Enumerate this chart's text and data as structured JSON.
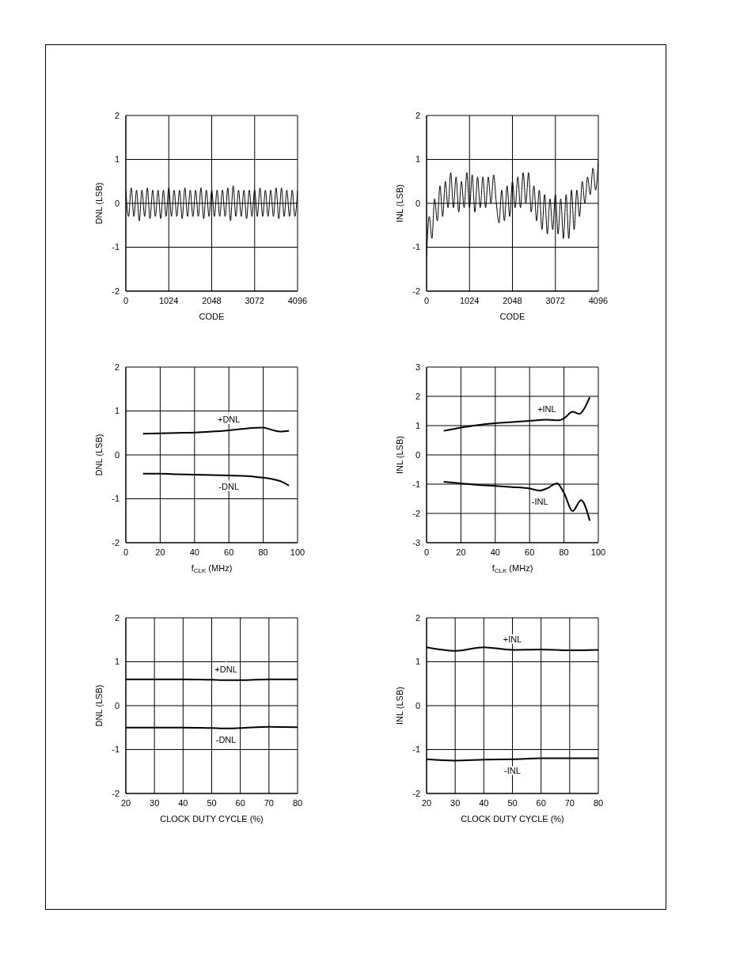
{
  "chart_data": [
    {
      "type": "line",
      "xlabel": "CODE",
      "ylabel": "DNL (LSB)",
      "xlim": [
        0,
        4096
      ],
      "xticks": [
        0,
        1024,
        2048,
        3072,
        4096
      ],
      "ylim": [
        -2,
        2
      ],
      "yticks": [
        -2,
        -1,
        0,
        1,
        2
      ],
      "grid": true,
      "legend": false,
      "marker": "none",
      "line_style": "solid",
      "x": [
        0,
        64,
        128,
        192,
        256,
        320,
        384,
        448,
        512,
        576,
        640,
        704,
        768,
        832,
        896,
        960,
        1024,
        1088,
        1152,
        1216,
        1280,
        1344,
        1408,
        1472,
        1536,
        1600,
        1664,
        1728,
        1792,
        1856,
        1920,
        1984,
        2048,
        2112,
        2176,
        2240,
        2304,
        2368,
        2432,
        2496,
        2560,
        2624,
        2688,
        2752,
        2816,
        2880,
        2944,
        3008,
        3072,
        3136,
        3200,
        3264,
        3328,
        3392,
        3456,
        3520,
        3584,
        3648,
        3712,
        3776,
        3840,
        3904,
        3968,
        4032,
        4096
      ],
      "series": [
        {
          "color": "#000000",
          "values": [
            0.3,
            -0.3,
            0.35,
            -0.3,
            0.3,
            -0.4,
            0.3,
            -0.3,
            0.35,
            -0.35,
            0.3,
            -0.3,
            0.3,
            -0.35,
            0.3,
            -0.3,
            0.35,
            -0.3,
            0.3,
            -0.3,
            0.3,
            -0.35,
            0.35,
            -0.3,
            0.3,
            -0.3,
            0.3,
            -0.3,
            0.35,
            -0.35,
            0.3,
            -0.3,
            0.3,
            -0.3,
            0.3,
            -0.3,
            0.3,
            -0.3,
            0.35,
            -0.4,
            0.4,
            -0.3,
            0.3,
            -0.3,
            0.3,
            -0.35,
            0.3,
            -0.3,
            0.3,
            -0.3,
            0.35,
            -0.3,
            0.3,
            -0.3,
            0.3,
            -0.3,
            0.35,
            -0.35,
            0.35,
            -0.3,
            0.3,
            -0.3,
            0.3,
            -0.3,
            0.3
          ]
        }
      ]
    },
    {
      "type": "line",
      "xlabel": "CODE",
      "ylabel": "INL (LSB)",
      "xlim": [
        0,
        4096
      ],
      "xticks": [
        0,
        1024,
        2048,
        3072,
        4096
      ],
      "ylim": [
        -2,
        2
      ],
      "yticks": [
        -2,
        -1,
        0,
        1,
        2
      ],
      "grid": true,
      "legend": false,
      "marker": "none",
      "line_style": "solid",
      "x": [
        0,
        64,
        128,
        192,
        256,
        320,
        384,
        448,
        512,
        576,
        640,
        704,
        768,
        832,
        896,
        960,
        1024,
        1088,
        1152,
        1216,
        1280,
        1344,
        1408,
        1472,
        1536,
        1600,
        1664,
        1728,
        1792,
        1856,
        1920,
        1984,
        2048,
        2112,
        2176,
        2240,
        2304,
        2368,
        2432,
        2496,
        2560,
        2624,
        2688,
        2752,
        2816,
        2880,
        2944,
        3008,
        3072,
        3136,
        3200,
        3264,
        3328,
        3392,
        3456,
        3520,
        3584,
        3648,
        3712,
        3776,
        3840,
        3904,
        3968,
        4032,
        4096
      ],
      "series": [
        {
          "color": "#000000",
          "values": [
            -1.2,
            -0.3,
            -0.8,
            0.1,
            -0.4,
            0.4,
            -0.3,
            0.5,
            -0.1,
            0.7,
            -0.1,
            0.6,
            -0.2,
            0.5,
            -0.1,
            0.7,
            -0.1,
            0.65,
            -0.2,
            0.6,
            -0.1,
            0.6,
            -0.1,
            0.6,
            0.0,
            0.65,
            0.0,
            -0.45,
            0.3,
            -0.4,
            0.4,
            -0.3,
            0.5,
            -0.1,
            0.6,
            -0.1,
            0.7,
            0.0,
            0.7,
            -0.2,
            0.4,
            -0.4,
            0.3,
            -0.6,
            0.2,
            -0.7,
            0.1,
            -0.6,
            0.2,
            -0.7,
            0.1,
            -0.8,
            0.2,
            -0.8,
            0.3,
            -0.6,
            0.3,
            -0.3,
            0.5,
            0.0,
            0.6,
            0.2,
            0.8,
            0.3,
            1.0
          ]
        }
      ]
    },
    {
      "type": "line",
      "xlabel": "f$_{CLK}$ (MHz)",
      "ylabel": "DNL (LSB)",
      "xlim": [
        0,
        100
      ],
      "xticks": [
        0,
        20,
        40,
        60,
        80,
        100
      ],
      "ylim": [
        -2,
        2
      ],
      "yticks": [
        -2,
        -1,
        0,
        1,
        2
      ],
      "grid": true,
      "legend": false,
      "marker": "none",
      "line_style": "solid",
      "x": [
        10,
        20,
        30,
        40,
        50,
        60,
        70,
        80,
        85,
        90,
        95
      ],
      "series": [
        {
          "name": "+DNL",
          "color": "#000000",
          "values": [
            0.48,
            0.49,
            0.5,
            0.51,
            0.53,
            0.56,
            0.6,
            0.62,
            0.57,
            0.53,
            0.55
          ]
        },
        {
          "name": "-DNL",
          "color": "#000000",
          "values": [
            -0.43,
            -0.43,
            -0.44,
            -0.45,
            -0.46,
            -0.47,
            -0.48,
            -0.52,
            -0.55,
            -0.6,
            -0.7
          ]
        }
      ]
    },
    {
      "type": "line",
      "xlabel": "f$_{CLK}$ (MHz)",
      "ylabel": "INL (LSB)",
      "xlim": [
        0,
        100
      ],
      "xticks": [
        0,
        20,
        40,
        60,
        80,
        100
      ],
      "ylim": [
        -3,
        3
      ],
      "yticks": [
        -3,
        -2,
        -1,
        0,
        1,
        2,
        3
      ],
      "grid": true,
      "legend": false,
      "marker": "none",
      "line_style": "solid",
      "series": [
        {
          "name": "+INL",
          "color": "#000000",
          "x": [
            10,
            20,
            30,
            40,
            50,
            60,
            70,
            77,
            80,
            85,
            89,
            92,
            95
          ],
          "values": [
            0.82,
            0.93,
            1.02,
            1.08,
            1.12,
            1.16,
            1.2,
            1.18,
            1.25,
            1.47,
            1.4,
            1.6,
            1.97
          ]
        },
        {
          "name": "-INL",
          "color": "#000000",
          "x": [
            10,
            20,
            30,
            40,
            50,
            60,
            66,
            70,
            76,
            80,
            85,
            90,
            95
          ],
          "values": [
            -0.92,
            -0.97,
            -1.03,
            -1.06,
            -1.1,
            -1.15,
            -1.22,
            -1.15,
            -0.97,
            -1.3,
            -1.92,
            -1.55,
            -2.25
          ]
        }
      ]
    },
    {
      "type": "line",
      "xlabel": "CLOCK DUTY CYCLE (%)",
      "ylabel": "DNL (LSB)",
      "xlim": [
        20,
        80
      ],
      "xticks": [
        20,
        30,
        40,
        50,
        60,
        70,
        80
      ],
      "ylim": [
        -2,
        2
      ],
      "yticks": [
        -2,
        -1,
        0,
        1,
        2
      ],
      "grid": true,
      "legend": false,
      "marker": "none",
      "line_style": "solid",
      "x": [
        20,
        30,
        40,
        50,
        55,
        60,
        70,
        80
      ],
      "series": [
        {
          "name": "+DNL",
          "color": "#000000",
          "values": [
            0.6,
            0.6,
            0.6,
            0.59,
            0.58,
            0.58,
            0.6,
            0.6
          ]
        },
        {
          "name": "-DNL",
          "color": "#000000",
          "values": [
            -0.5,
            -0.5,
            -0.5,
            -0.51,
            -0.52,
            -0.51,
            -0.48,
            -0.49
          ]
        }
      ]
    },
    {
      "type": "line",
      "xlabel": "CLOCK DUTY CYCLE (%)",
      "ylabel": "INL (LSB)",
      "xlim": [
        20,
        80
      ],
      "xticks": [
        20,
        30,
        40,
        50,
        60,
        70,
        80
      ],
      "ylim": [
        -2,
        2
      ],
      "yticks": [
        -2,
        -1,
        0,
        1,
        2
      ],
      "grid": true,
      "legend": false,
      "marker": "none",
      "line_style": "solid",
      "x": [
        20,
        30,
        40,
        50,
        60,
        70,
        80
      ],
      "series": [
        {
          "name": "+INL",
          "color": "#000000",
          "values": [
            1.33,
            1.25,
            1.33,
            1.27,
            1.28,
            1.26,
            1.27
          ]
        },
        {
          "name": "-INL",
          "color": "#000000",
          "values": [
            -1.22,
            -1.25,
            -1.23,
            -1.22,
            -1.2,
            -1.2,
            -1.2
          ]
        }
      ]
    }
  ]
}
